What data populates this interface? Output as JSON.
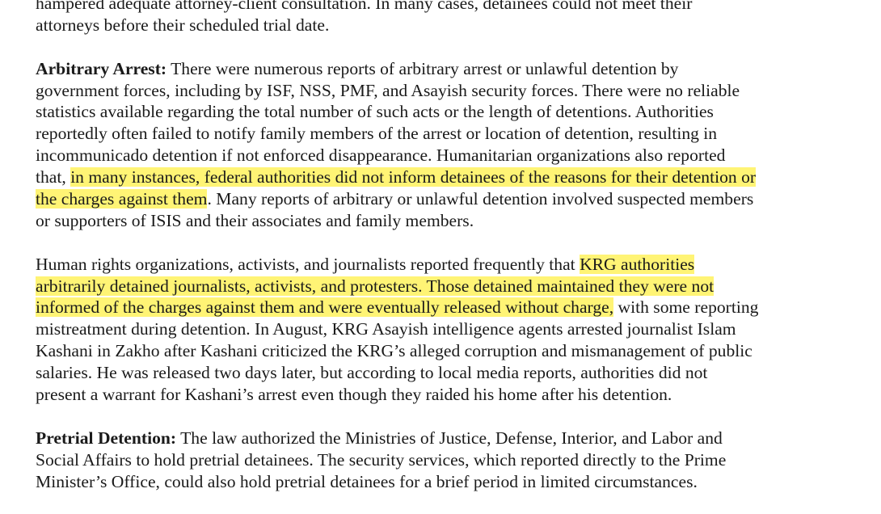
{
  "highlight_color": "#fff475",
  "paragraphs": [
    {
      "lines": [
        [
          {
            "t": "hampered adequate attorney-client consultation. In many cases, detainees could not meet their"
          }
        ],
        [
          {
            "t": "attorneys before their scheduled trial date."
          }
        ]
      ]
    },
    {
      "lines": [
        [
          {
            "t": "Arbitrary Arrest:",
            "b": true
          },
          {
            "t": " There were numerous reports of arbitrary arrest or unlawful detention by"
          }
        ],
        [
          {
            "t": "government forces, including by ISF, NSS, PMF, and Asayish security forces. There were no reliable"
          }
        ],
        [
          {
            "t": "statistics available regarding the total number of such acts or the length of detentions. Authorities"
          }
        ],
        [
          {
            "t": "reportedly often failed to notify family members of the arrest or location of detention, resulting in"
          }
        ],
        [
          {
            "t": "incommunicado detention if not enforced disappearance. Humanitarian organizations also reported"
          }
        ],
        [
          {
            "t": "that, "
          },
          {
            "t": "in many instances, federal authorities did not inform detainees of the reasons for their detention or",
            "h": true
          }
        ],
        [
          {
            "t": "the charges against them",
            "h": true
          },
          {
            "t": ". Many reports of arbitrary or unlawful detention involved suspected members"
          }
        ],
        [
          {
            "t": "or supporters of ISIS and their associates and family members."
          }
        ]
      ]
    },
    {
      "lines": [
        [
          {
            "t": "Human rights organizations, activists, and journalists reported frequently that "
          },
          {
            "t": "KRG authorities",
            "h": true
          }
        ],
        [
          {
            "t": "arbitrarily detained journalists, activists, and protesters. Those detained maintained they were not",
            "h": true
          }
        ],
        [
          {
            "t": "informed of the charges against them and were eventually released without charge,",
            "h": true
          },
          {
            "t": " with some reporting"
          }
        ],
        [
          {
            "t": "mistreatment during detention. In August, KRG Asayish intelligence agents arrested journalist Islam"
          }
        ],
        [
          {
            "t": "Kashani in Zakho after Kashani criticized the KRG’s alleged corruption and mismanagement of public"
          }
        ],
        [
          {
            "t": "salaries. He was released two days later, but according to local media reports, authorities did not"
          }
        ],
        [
          {
            "t": "present a warrant for Kashani’s arrest even though they raided his home after his detention."
          }
        ]
      ]
    },
    {
      "lines": [
        [
          {
            "t": "Pretrial Detention:",
            "b": true
          },
          {
            "t": " The law authorized the Ministries of Justice, Defense, Interior, and Labor and"
          }
        ],
        [
          {
            "t": "Social Affairs to hold pretrial detainees. The security services, which reported directly to the Prime"
          }
        ],
        [
          {
            "t": "Minister’s Office, could also hold pretrial detainees for a brief period in limited circumstances."
          }
        ]
      ]
    }
  ]
}
